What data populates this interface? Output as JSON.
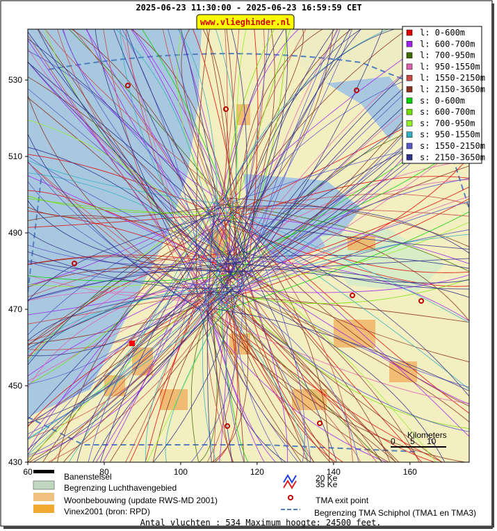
{
  "header": {
    "title": "2025-06-23 11:30:00 - 2025-06-23 16:59:59 CET",
    "site": "www.vlieghinder.nl"
  },
  "axes": {
    "xlim": [
      60,
      175.5
    ],
    "ylim": [
      430,
      543.3
    ],
    "xticks": [
      60,
      80,
      100,
      120,
      140,
      160
    ],
    "yticks": [
      430,
      450,
      470,
      490,
      510,
      530
    ]
  },
  "legend": [
    {
      "label": "l: 0-600m",
      "color": "#e00000"
    },
    {
      "label": "l: 600-700m",
      "color": "#a020f0"
    },
    {
      "label": "l: 700-950m",
      "color": "#3c6e00"
    },
    {
      "label": "l: 950-1550m",
      "color": "#e060b0"
    },
    {
      "label": "l: 1550-2150m",
      "color": "#c84848"
    },
    {
      "label": "l: 2150-3650m",
      "color": "#8b3020"
    },
    {
      "label": "s: 0-600m",
      "color": "#00d000"
    },
    {
      "label": "s: 600-700m",
      "color": "#70e000"
    },
    {
      "label": "s: 700-950m",
      "color": "#90f020"
    },
    {
      "label": "s: 950-1550m",
      "color": "#30b0c0"
    },
    {
      "label": "s: 1550-2150m",
      "color": "#5858c8"
    },
    {
      "label": "s: 2150-3650m",
      "color": "#303088"
    }
  ],
  "map_legend": {
    "runways": "Banenstelsel",
    "airport_boundary": "Begrenzing Luchthavengebied",
    "housing": "Woonbebouwing (update RWS-MD 2001)",
    "vinex": "Vinex2001 (bron: RPD)",
    "ke20": "20 Ke",
    "ke35": "35 Ke",
    "tma_exit": "TMA exit point",
    "tma_boundary": "Begrenzing TMA Schiphol  (TMA1 en TMA3)"
  },
  "scale_bar": {
    "title": "Kilometers",
    "labels": [
      "0",
      "5",
      "10"
    ]
  },
  "footer": "Antal vluchten : 534 Maximum hoogte: 24500 feet."
}
